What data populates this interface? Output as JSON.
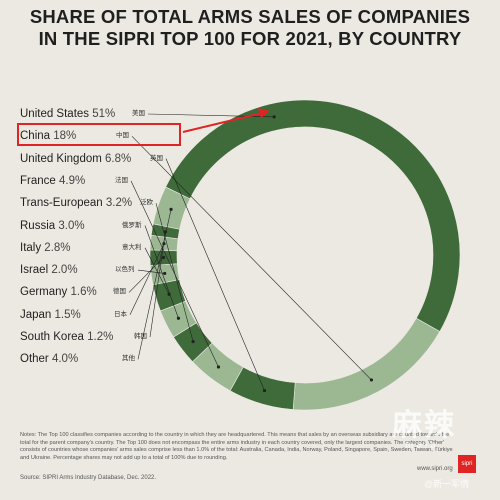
{
  "title_line1": "SHARE OF TOTAL ARMS SALES OF COMPANIES",
  "title_line2": "IN THE SIPRI TOP 100 FOR 2021, BY COUNTRY",
  "chart_data": {
    "type": "pie",
    "title": "SHARE OF TOTAL ARMS SALES OF COMPANIES IN THE SIPRI TOP 100 FOR 2021, BY COUNTRY",
    "unit": "%",
    "categories": [
      "United States",
      "China",
      "United Kingdom",
      "France",
      "Trans-European",
      "Russia",
      "Italy",
      "Israel",
      "Germany",
      "Japan",
      "South Korea",
      "Other"
    ],
    "values": [
      51,
      18,
      6.8,
      4.9,
      3.2,
      3.0,
      2.8,
      2.0,
      1.6,
      1.5,
      1.2,
      4.0
    ],
    "value_labels": [
      "51%",
      "18%",
      "6.8%",
      "4.9%",
      "3.2%",
      "3.0%",
      "2.8%",
      "2.0%",
      "1.6%",
      "1.5%",
      "1.2%",
      "4.0%"
    ],
    "chinese_labels": [
      "美国",
      "中国",
      "英国",
      "法国",
      "泛欧",
      "俄罗斯",
      "意大利",
      "以色列",
      "德国",
      "日本",
      "韩国",
      "其他"
    ],
    "highlighted": "China",
    "colors": {
      "dark": "#3f6b3b",
      "light": "#9cb893",
      "background": "#ece9e2",
      "highlight": "#e02424"
    }
  },
  "notes": "Notes: The Top 100 classifies companies according to the country in which they are headquartered. This means that sales by an overseas subsidiary are counted towards the total for the parent company's country. The Top 100 does not encompass the entire arms industry in each country covered, only the largest companies. The category 'Other' consists of countries whose companies' arms sales comprise less than 1.0% of the total: Australia, Canada, India, Norway, Poland, Singapore, Spain, Sweden, Taiwan, Türkiye and Ukraine. Percentage shares may not add up to a total of 100% due to rounding.",
  "source": "Source: SIPRI Arms Industry Database, Dec. 2022.",
  "sipri_url": "www.sipri.org",
  "logo_text": "sipri",
  "watermark_main": "麻辣",
  "watermark_sub": "mala",
  "watermark_handle": "@新一军情"
}
